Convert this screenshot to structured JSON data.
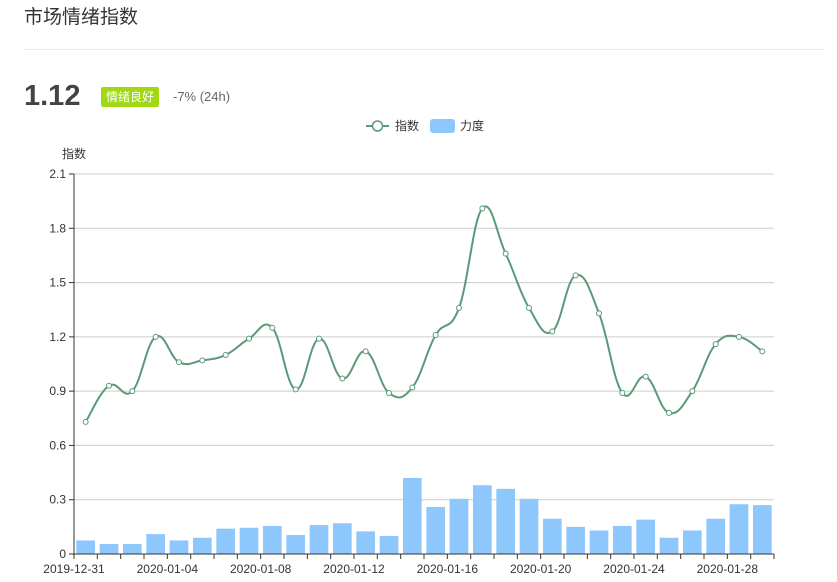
{
  "header": {
    "title": "市场情绪指数",
    "index_value": "1.12",
    "mood_label": "情绪良好",
    "change": "-7% (24h)"
  },
  "colors": {
    "line": "#5a9a78",
    "bar": "#8ec7fb",
    "badge": "#a0d911",
    "grid": "#cccccc"
  },
  "chart_data": {
    "type": "bar+line",
    "ylabel": "指数",
    "ylim": [
      0,
      2.1
    ],
    "yticks": [
      "0",
      "0.3",
      "0.6",
      "0.9",
      "1.2",
      "1.5",
      "1.8",
      "2.1"
    ],
    "ytick_values": [
      0,
      0.3,
      0.6,
      0.9,
      1.2,
      1.5,
      1.8,
      2.1
    ],
    "legend_position": "top-center",
    "grid": true,
    "x": [
      "2019-12-31",
      "2020-01-01",
      "2020-01-02",
      "2020-01-03",
      "2020-01-04",
      "2020-01-05",
      "2020-01-06",
      "2020-01-07",
      "2020-01-08",
      "2020-01-09",
      "2020-01-10",
      "2020-01-11",
      "2020-01-12",
      "2020-01-13",
      "2020-01-14",
      "2020-01-15",
      "2020-01-16",
      "2020-01-17",
      "2020-01-18",
      "2020-01-19",
      "2020-01-20",
      "2020-01-21",
      "2020-01-22",
      "2020-01-23",
      "2020-01-24",
      "2020-01-25",
      "2020-01-26",
      "2020-01-27",
      "2020-01-28",
      "2020-01-29"
    ],
    "xtick_labels": [
      {
        "label": "2019-12-31",
        "index": 0
      },
      {
        "label": "2020-01-04",
        "index": 4
      },
      {
        "label": "2020-01-08",
        "index": 8
      },
      {
        "label": "2020-01-12",
        "index": 12
      },
      {
        "label": "2020-01-16",
        "index": 16
      },
      {
        "label": "2020-01-20",
        "index": 20
      },
      {
        "label": "2020-01-24",
        "index": 24
      },
      {
        "label": "2020-01-28",
        "index": 28
      }
    ],
    "series": [
      {
        "name": "指数",
        "type": "line",
        "values": [
          0.73,
          0.93,
          0.9,
          1.2,
          1.06,
          1.07,
          1.1,
          1.19,
          1.25,
          0.91,
          1.19,
          0.97,
          1.12,
          0.89,
          0.92,
          1.21,
          1.36,
          1.91,
          1.66,
          1.36,
          1.23,
          1.54,
          1.33,
          0.89,
          0.98,
          0.78,
          0.9,
          1.16,
          1.2,
          1.12
        ]
      },
      {
        "name": "力度",
        "type": "bar",
        "values": [
          0.075,
          0.055,
          0.055,
          0.11,
          0.075,
          0.09,
          0.14,
          0.145,
          0.155,
          0.105,
          0.16,
          0.17,
          0.125,
          0.1,
          0.42,
          0.26,
          0.305,
          0.38,
          0.36,
          0.305,
          0.195,
          0.15,
          0.13,
          0.155,
          0.19,
          0.09,
          0.13,
          0.195,
          0.275,
          0.27
        ]
      }
    ]
  }
}
